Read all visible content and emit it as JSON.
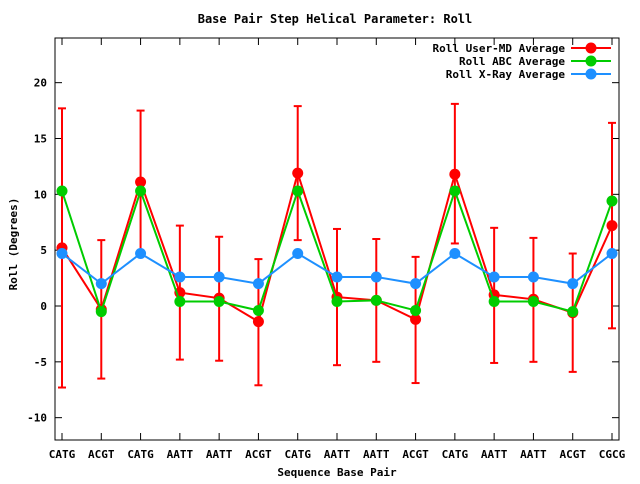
{
  "chart_data": {
    "type": "line",
    "title": "Base Pair Step Helical Parameter: Roll",
    "xlabel": "Sequence Base Pair",
    "ylabel": "Roll (Degrees)",
    "ylim": [
      -12,
      24
    ],
    "yticks": [
      -10,
      -5,
      0,
      5,
      10,
      15,
      20
    ],
    "grid": false,
    "legend_position": "top-right",
    "categories": [
      "CATG",
      "ACGT",
      "CATG",
      "AATT",
      "AATT",
      "ACGT",
      "CATG",
      "AATT",
      "AATT",
      "ACGT",
      "CATG",
      "AATT",
      "AATT",
      "ACGT",
      "CGCG"
    ],
    "series": [
      {
        "name": "Roll User-MD Average",
        "color": "#ff0000",
        "values": [
          5.2,
          -0.3,
          11.1,
          1.2,
          0.7,
          -1.4,
          11.9,
          0.8,
          0.5,
          -1.2,
          11.8,
          1.0,
          0.6,
          -0.6,
          7.2
        ],
        "error_low": [
          -7.3,
          -6.5,
          4.8,
          -4.8,
          -4.9,
          -7.1,
          5.9,
          -5.3,
          -5.0,
          -6.9,
          5.6,
          -5.1,
          -5.0,
          -5.9,
          -2.0
        ],
        "error_high": [
          17.7,
          5.9,
          17.5,
          7.2,
          6.2,
          4.2,
          17.9,
          6.9,
          6.0,
          4.4,
          18.1,
          7.0,
          6.1,
          4.7,
          16.4
        ]
      },
      {
        "name": "Roll ABC Average",
        "color": "#00cc00",
        "values": [
          10.3,
          -0.5,
          10.3,
          0.4,
          0.4,
          -0.4,
          10.3,
          0.4,
          0.5,
          -0.4,
          10.3,
          0.4,
          0.4,
          -0.5,
          9.4
        ]
      },
      {
        "name": "Roll X-Ray Average",
        "color": "#1e90ff",
        "values": [
          4.7,
          2.0,
          4.7,
          2.6,
          2.6,
          2.0,
          4.7,
          2.6,
          2.6,
          2.0,
          4.7,
          2.6,
          2.6,
          2.0,
          4.7
        ]
      }
    ]
  }
}
